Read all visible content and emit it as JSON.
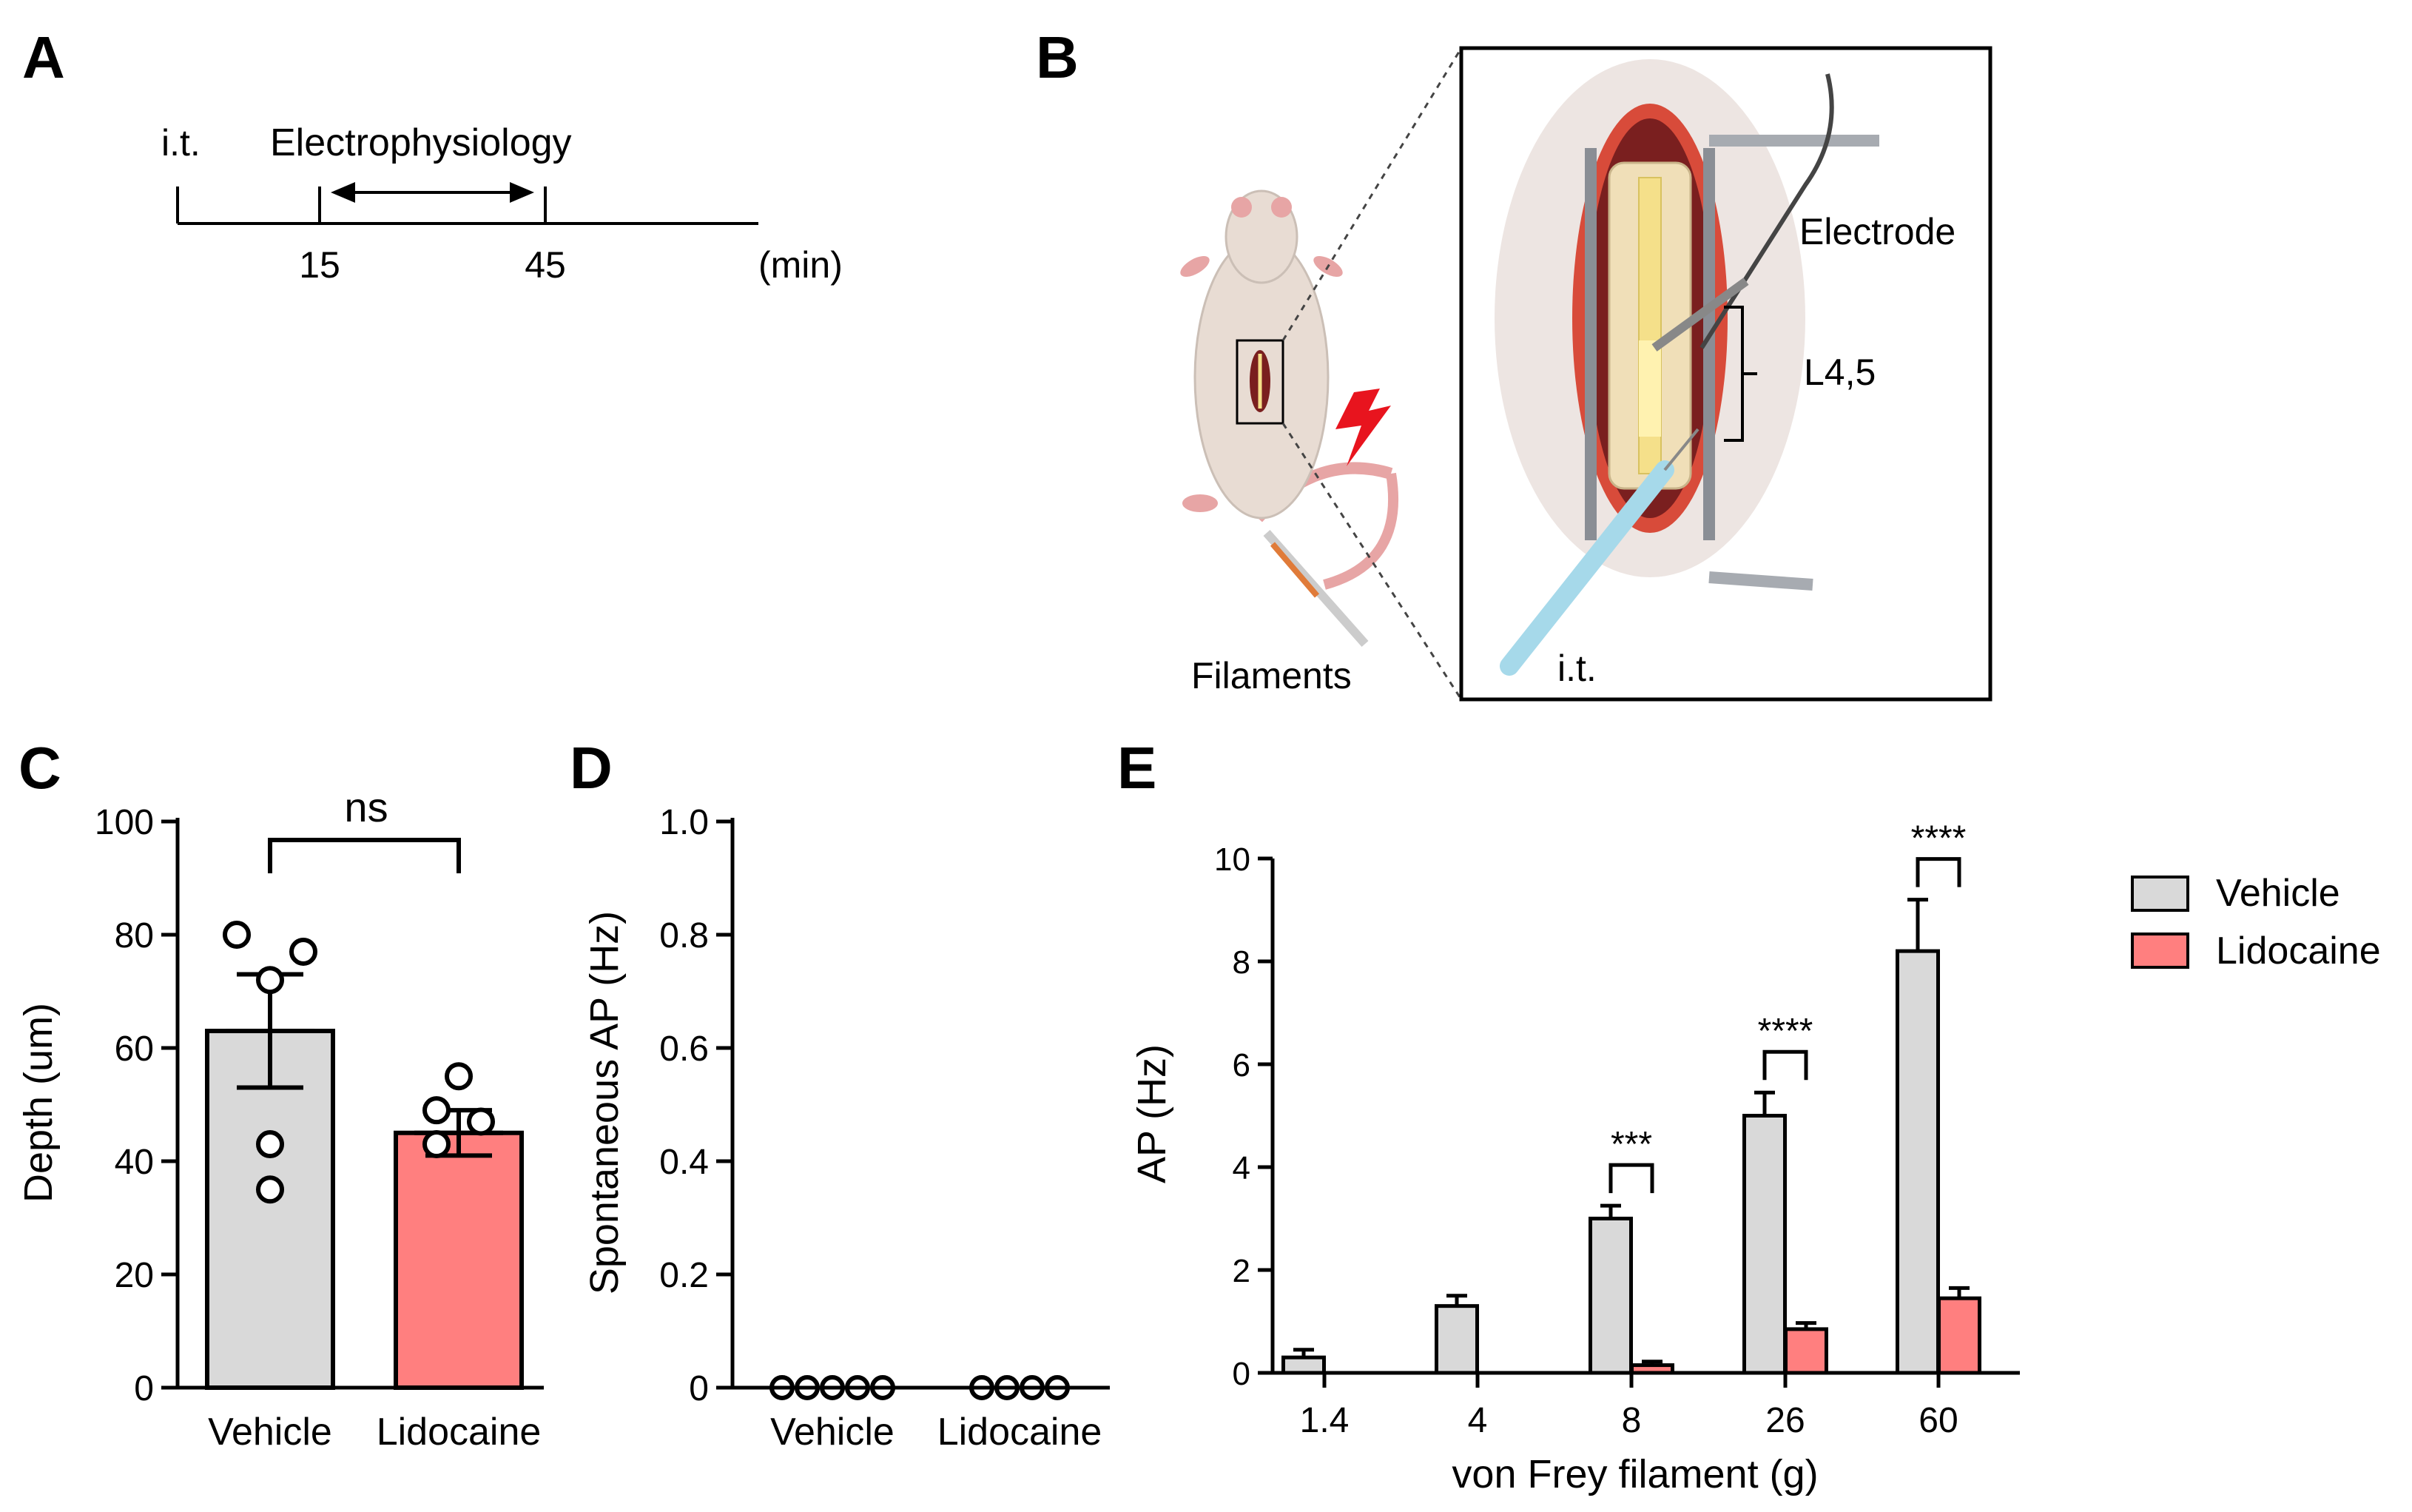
{
  "panels": {
    "A": {
      "letter": "A",
      "it_label": "i.t.",
      "title": "Electrophysiology",
      "ticks": [
        "15",
        "45"
      ],
      "unit": "(min)"
    },
    "B": {
      "letter": "B",
      "electrode_label": "Electrode",
      "level_label": "L4,5",
      "filaments_label": "Filaments",
      "it_label": "i.t.",
      "colors": {
        "vehicle": "#d9d9d9",
        "lidocaine": "#ff7f7f",
        "stimulus": "#e8141e",
        "spinal_cord": "#f5e08a",
        "tissue": "#7a1f1f"
      }
    }
  },
  "chart_data": [
    {
      "id": "C",
      "letter": "C",
      "type": "bar",
      "categories": [
        "Vehicle",
        "Lidocaine"
      ],
      "values": [
        63,
        45
      ],
      "errors": [
        10,
        4
      ],
      "points": [
        [
          80,
          77,
          72,
          43,
          35
        ],
        [
          55,
          49,
          47,
          43
        ]
      ],
      "ylabel": "Depth (um)",
      "ylim": [
        0,
        100
      ],
      "yticks": [
        "0",
        "20",
        "40",
        "60",
        "80",
        "100"
      ],
      "annotation": "ns",
      "colors": [
        "#d9d9d9",
        "#ff7f7f"
      ]
    },
    {
      "id": "D",
      "letter": "D",
      "type": "scatter",
      "categories": [
        "Vehicle",
        "Lidocaine"
      ],
      "points": [
        [
          0,
          0,
          0,
          0,
          0
        ],
        [
          0,
          0,
          0,
          0
        ]
      ],
      "ylabel": "Spontaneous AP (Hz)",
      "ylim": [
        0,
        1.0
      ],
      "yticks": [
        "0",
        "0.2",
        "0.4",
        "0.6",
        "0.8",
        "1.0"
      ]
    },
    {
      "id": "E",
      "letter": "E",
      "type": "bar",
      "categories": [
        "1.4",
        "4",
        "8",
        "26",
        "60"
      ],
      "series": [
        {
          "name": "Vehicle",
          "values": [
            0.3,
            1.3,
            3.0,
            5.0,
            8.2
          ],
          "errors": [
            0.15,
            0.2,
            0.25,
            0.45,
            1.0
          ],
          "color": "#d9d9d9"
        },
        {
          "name": "Lidocaine",
          "values": [
            0,
            0,
            0.15,
            0.85,
            1.45
          ],
          "errors": [
            0,
            0,
            0.07,
            0.12,
            0.2
          ],
          "color": "#ff7f7f"
        }
      ],
      "xlabel": "von Frey filament (g)",
      "ylabel": "AP (Hz)",
      "ylim": [
        0,
        10
      ],
      "yticks": [
        "0",
        "2",
        "4",
        "6",
        "8",
        "10"
      ],
      "significance": [
        {
          "category": "8",
          "label": "***"
        },
        {
          "category": "26",
          "label": "****"
        },
        {
          "category": "60",
          "label": "****"
        }
      ],
      "legend_position": "top-right"
    }
  ]
}
